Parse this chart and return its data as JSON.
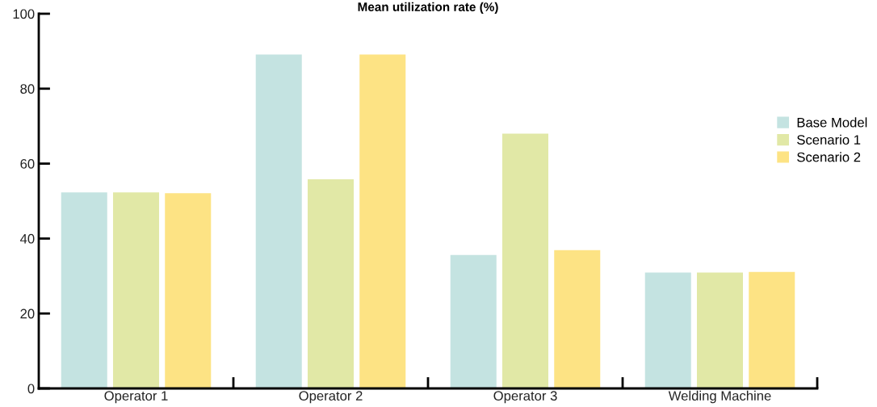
{
  "chart_data": {
    "type": "bar",
    "title": "Mean utilization rate (%)",
    "categories": [
      "Operator 1",
      "Operator 2",
      "Operator 3",
      "Welding Machine"
    ],
    "series": [
      {
        "name": "Base Model",
        "color": "#c4e3e1",
        "values": [
          52.3,
          89.1,
          35.6,
          30.9
        ]
      },
      {
        "name": "Scenario 1",
        "color": "#e1e8a6",
        "values": [
          52.3,
          55.8,
          68.0,
          30.9
        ]
      },
      {
        "name": "Scenario 2",
        "color": "#fde384",
        "values": [
          52.1,
          89.1,
          36.9,
          31.1
        ]
      }
    ],
    "ylim": [
      0,
      100
    ],
    "yticks": [
      0,
      20,
      40,
      60,
      80,
      100
    ],
    "grid": false,
    "legend": "right"
  }
}
